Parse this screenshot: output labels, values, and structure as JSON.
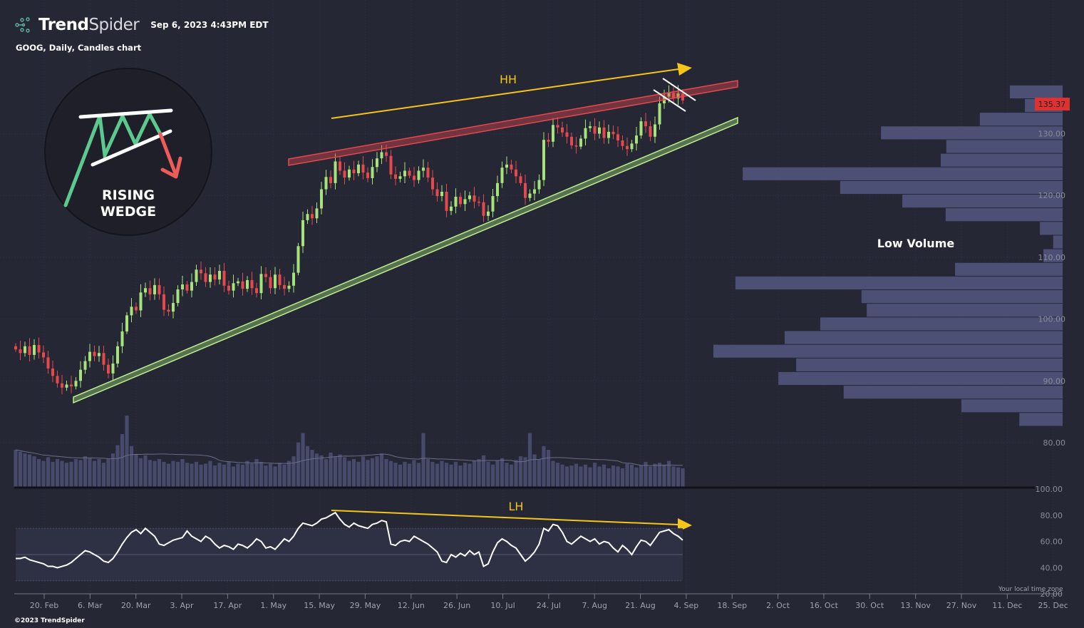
{
  "header": {
    "brand_bold": "Trend",
    "brand_light": "Spider",
    "timestamp": "Sep 6, 2023 4:43PM EDT",
    "subtitle": "GOOG, Daily, Candles chart"
  },
  "footer": {
    "copyright": "©2023 TrendSpider",
    "timezone_note": "Your local time zone"
  },
  "colors": {
    "background": "#252735",
    "up": "#a6e37a",
    "down": "#e5484d",
    "volume": "#474a6b",
    "profile": "#4c5075",
    "annotation": "#f5c518",
    "last_price_tag": "#e03131"
  },
  "badge": {
    "line1": "RISING",
    "line2": "WEDGE",
    "icon": "rising-wedge-pattern-icon"
  },
  "annotations": {
    "upper": "HH",
    "lower": "LH",
    "profile_note": "Low Volume"
  },
  "chart_data": [
    {
      "type": "candlestick",
      "symbol": "GOOG",
      "interval": "Daily",
      "last_price": "135.37",
      "y_ticks": [
        "80.00",
        "90.00",
        "100.00",
        "110.00",
        "120.00",
        "130.00"
      ],
      "ylim": [
        80,
        140
      ],
      "x_ticks": [
        "20. Feb",
        "6. Mar",
        "20. Mar",
        "3. Apr",
        "17. Apr",
        "1. May",
        "15. May",
        "29. May",
        "12. Jun",
        "26. Jun",
        "10. Jul",
        "24. Jul",
        "7. Aug",
        "21. Aug",
        "4. Sep",
        "18. Sep",
        "2. Oct",
        "16. Oct",
        "30. Oct",
        "13. Nov",
        "27. Nov",
        "11. Dec",
        "25. Dec"
      ],
      "close": [
        95.1,
        94.5,
        95.6,
        94.2,
        95.8,
        94.6,
        93.8,
        92.0,
        90.8,
        89.6,
        88.9,
        89.4,
        89.1,
        90.0,
        91.8,
        93.2,
        94.7,
        94.0,
        94.5,
        92.6,
        91.2,
        92.8,
        95.6,
        98.0,
        100.6,
        102.0,
        101.4,
        104.3,
        105.0,
        104.0,
        105.5,
        104.0,
        101.5,
        101.2,
        102.6,
        104.8,
        105.6,
        104.6,
        106.0,
        108.0,
        107.4,
        106.0,
        107.2,
        106.4,
        107.8,
        105.4,
        104.6,
        105.8,
        106.1,
        104.9,
        106.3,
        105.0,
        104.2,
        107.3,
        106.8,
        105.0,
        107.2,
        105.5,
        104.9,
        105.4,
        107.5,
        111.8,
        116.0,
        117.0,
        116.3,
        117.9,
        121.0,
        123.0,
        122.0,
        125.5,
        124.0,
        122.9,
        124.2,
        123.6,
        125.0,
        123.7,
        122.8,
        124.6,
        126.0,
        127.0,
        126.4,
        123.4,
        122.7,
        123.1,
        124.0,
        123.2,
        122.5,
        124.0,
        124.5,
        122.9,
        121.0,
        119.9,
        120.6,
        117.5,
        118.2,
        119.8,
        118.6,
        119.4,
        120.0,
        119.0,
        118.9,
        116.7,
        117.4,
        119.9,
        122.0,
        124.5,
        125.0,
        124.2,
        123.1,
        122.0,
        119.6,
        120.3,
        121.0,
        122.5,
        129.0,
        128.7,
        131.4,
        131.0,
        130.2,
        129.5,
        128.1,
        127.9,
        129.2,
        130.9,
        131.2,
        130.0,
        131.0,
        129.3,
        130.3,
        129.9,
        128.9,
        128.0,
        127.5,
        128.4,
        129.7,
        132.0,
        131.2,
        129.5,
        131.5,
        134.9,
        136.0,
        136.6,
        135.7,
        136.5,
        135.37
      ],
      "volume_millions": [
        40,
        38,
        36,
        35,
        33,
        30,
        28,
        32,
        27,
        30,
        28,
        26,
        27,
        30,
        29,
        33,
        31,
        28,
        30,
        26,
        30,
        36,
        45,
        57,
        77,
        44,
        35,
        31,
        34,
        29,
        28,
        30,
        27,
        25,
        28,
        27,
        30,
        26,
        25,
        27,
        24,
        25,
        28,
        23,
        26,
        24,
        27,
        22,
        25,
        24,
        28,
        25,
        30,
        27,
        23,
        25,
        22,
        26,
        24,
        28,
        33,
        48,
        58,
        44,
        40,
        36,
        34,
        30,
        37,
        33,
        35,
        32,
        28,
        30,
        27,
        33,
        29,
        31,
        33,
        36,
        30,
        28,
        26,
        24,
        27,
        25,
        29,
        26,
        58,
        30,
        27,
        25,
        28,
        26,
        24,
        27,
        23,
        26,
        25,
        28,
        30,
        34,
        27,
        24,
        28,
        31,
        26,
        24,
        29,
        33,
        32,
        58,
        35,
        30,
        44,
        40,
        28,
        26,
        24,
        22,
        23,
        25,
        22,
        24,
        21,
        26,
        22,
        24,
        20,
        23,
        22,
        20,
        25,
        24,
        21,
        23,
        27,
        22,
        25,
        26,
        24,
        28,
        22,
        21,
        20
      ],
      "volume_profile": {
        "price_range": [
          82.6,
          137.8
        ],
        "relative_volume_top_to_bottom": [
          15.1,
          10.8,
          23.7,
          52,
          33.3,
          34.9,
          91.6,
          63.7,
          45.9,
          33.5,
          6.5,
          2.7,
          5.5,
          30.8,
          93.7,
          57.6,
          56.1,
          69.4,
          79.6,
          100,
          76.3,
          81.4,
          62.7,
          29,
          12.4
        ]
      },
      "trendlines": {
        "resistance": {
          "color": "#e5484d",
          "from_price": 125.5,
          "to_price": 138.0
        },
        "support": {
          "color": "#a6e37a",
          "from_price": 86.8,
          "to_price": 131.9
        }
      }
    },
    {
      "type": "line",
      "indicator": "RSI",
      "y_ticks": [
        "20.00",
        "40.00",
        "60.00",
        "80.00",
        "100.00"
      ],
      "ylim": [
        20,
        100
      ],
      "band": [
        30,
        70
      ],
      "values": [
        47,
        47,
        48,
        46,
        45,
        44,
        43,
        41,
        41,
        40,
        41,
        42,
        44,
        47,
        50,
        53,
        52,
        50,
        48,
        45,
        44,
        47,
        52,
        58,
        63,
        67,
        69,
        66,
        70,
        67,
        64,
        58,
        57,
        59,
        61,
        62,
        63,
        68,
        64,
        62,
        60,
        64,
        62,
        58,
        55,
        57,
        56,
        54,
        58,
        57,
        55,
        58,
        62,
        60,
        55,
        56,
        54,
        58,
        62,
        60,
        64,
        70,
        74,
        73,
        72,
        74,
        77,
        78,
        80,
        82,
        77,
        73,
        71,
        74,
        72,
        71,
        70,
        73,
        74,
        76,
        75,
        58,
        57,
        60,
        61,
        60,
        64,
        62,
        60,
        58,
        55,
        52,
        45,
        44,
        50,
        48,
        51,
        49,
        53,
        50,
        52,
        41,
        43,
        52,
        59,
        62,
        60,
        57,
        55,
        50,
        45,
        48,
        52,
        58,
        70,
        68,
        73,
        72,
        67,
        60,
        58,
        61,
        64,
        62,
        60,
        62,
        58,
        60,
        59,
        55,
        52,
        57,
        54,
        50,
        56,
        61,
        60,
        57,
        62,
        67,
        68,
        69,
        66,
        64,
        61
      ]
    }
  ]
}
